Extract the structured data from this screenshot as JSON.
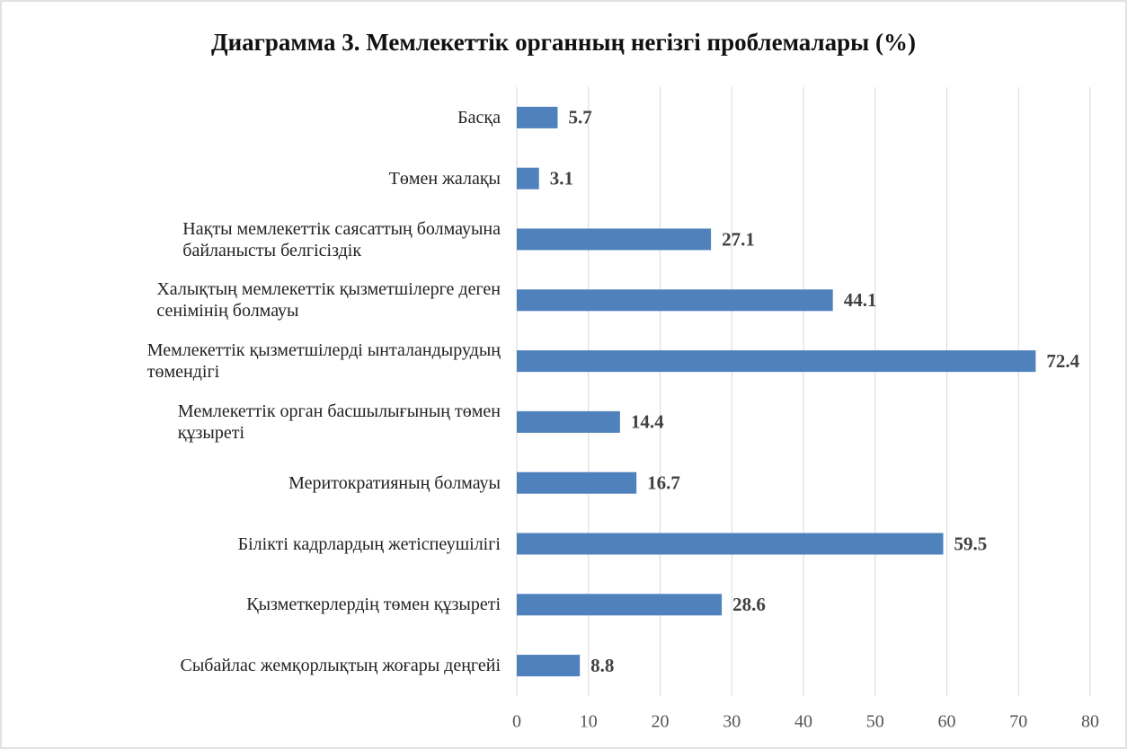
{
  "chart_data": {
    "type": "hbar",
    "title": "Диаграмма 3. Мемлекеттік органның негізгі проблемалары (%)",
    "categories": [
      "Басқа",
      "Төмен жалақы",
      "Нақты мемлекеттік саясаттың болмауына\nбайланысты белгісіздік",
      "Халықтың мемлекеттік қызметшілерге деген\nсенімінің болмауы",
      "Мемлекеттік қызметшілерді ынталандырудың\nтөмендігі",
      "Мемлекеттік орган басшылығының төмен\nқұзыреті",
      "Меритократияның болмауы",
      "Білікті кадрлардың жетіспеушілігі",
      "Қызметкерлердің төмен құзыреті",
      "Сыбайлас жемқорлықтың жоғары деңгейі"
    ],
    "values": [
      5.7,
      3.1,
      27.1,
      44.1,
      72.4,
      14.4,
      16.7,
      59.5,
      28.6,
      8.8
    ],
    "color": "#4f81bd",
    "xlim": [
      0,
      80
    ],
    "xticks": [
      0,
      10,
      20,
      30,
      40,
      50,
      60,
      70,
      80
    ],
    "grid": true
  }
}
